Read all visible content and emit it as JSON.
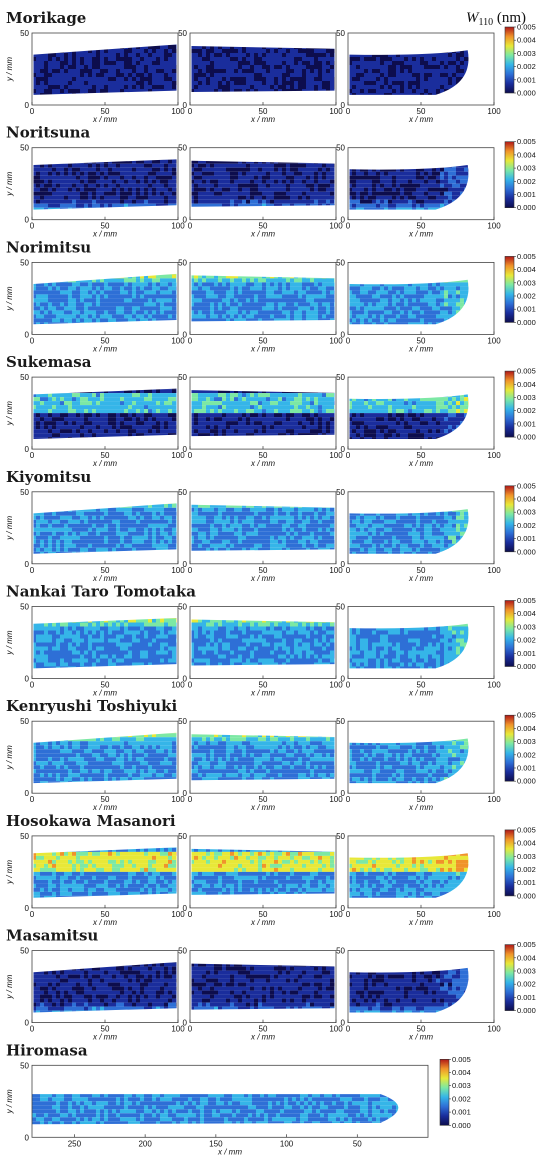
{
  "figure": {
    "quantity": "W",
    "quantity_sub": "110",
    "quantity_unit": " (nm)",
    "colorbar_ticks": [
      "0.000",
      "0.001",
      "0.002",
      "0.003",
      "0.004",
      "0.005"
    ]
  },
  "colors": {
    "colormap": [
      "#0d0d4d",
      "#1a2d9c",
      "#2e6fd6",
      "#35b5e8",
      "#7ce8a4",
      "#e8e838",
      "#f0932a",
      "#b01818"
    ],
    "text": "#111111",
    "frame": "#444444"
  },
  "chart_data": [
    {
      "type": "heatmap",
      "title": "Morikage",
      "panels": 3,
      "xlabel": "x / mm",
      "ylabel": "y / mm",
      "xlim": [
        0,
        100
      ],
      "ylim": [
        0,
        50
      ],
      "x_ticks": [
        "0",
        "50",
        "100"
      ],
      "y_ticks": [
        "0",
        "50"
      ],
      "colorbar": {
        "min": 0,
        "max": 0.005,
        "unit": "nm"
      },
      "level": "low",
      "edge_pattern": "none"
    },
    {
      "type": "heatmap",
      "title": "Noritsuna",
      "panels": 3,
      "xlabel": "x / mm",
      "ylabel": "y / mm",
      "xlim": [
        0,
        100
      ],
      "ylim": [
        0,
        50
      ],
      "x_ticks": [
        "0",
        "50",
        "100"
      ],
      "y_ticks": [
        "0",
        "50"
      ],
      "colorbar": {
        "min": 0,
        "max": 0.005,
        "unit": "nm"
      },
      "level": "low",
      "edge_pattern": "lower edge"
    },
    {
      "type": "heatmap",
      "title": "Norimitsu",
      "panels": 3,
      "xlabel": "x / mm",
      "ylabel": "y / mm",
      "xlim": [
        0,
        100
      ],
      "ylim": [
        0,
        50
      ],
      "x_ticks": [
        "0",
        "50",
        "100"
      ],
      "y_ticks": [
        "0",
        "50"
      ],
      "colorbar": {
        "min": 0,
        "max": 0.005,
        "unit": "nm"
      },
      "level": "medium",
      "edge_pattern": "upper edge"
    },
    {
      "type": "heatmap",
      "title": "Sukemasa",
      "panels": 3,
      "xlabel": "x / mm",
      "ylabel": "y / mm",
      "xlim": [
        0,
        100
      ],
      "ylim": [
        0,
        50
      ],
      "x_ticks": [
        "0",
        "50",
        "100"
      ],
      "y_ticks": [
        "0",
        "50"
      ],
      "colorbar": {
        "min": 0,
        "max": 0.005,
        "unit": "nm"
      },
      "level": "low",
      "edge_pattern": "upper band"
    },
    {
      "type": "heatmap",
      "title": "Kiyomitsu",
      "panels": 3,
      "xlabel": "x / mm",
      "ylabel": "y / mm",
      "xlim": [
        0,
        100
      ],
      "ylim": [
        0,
        50
      ],
      "x_ticks": [
        "0",
        "50",
        "100"
      ],
      "y_ticks": [
        "0",
        "50"
      ],
      "colorbar": {
        "min": 0,
        "max": 0.005,
        "unit": "nm"
      },
      "level": "medium",
      "edge_pattern": "thin upper edge"
    },
    {
      "type": "heatmap",
      "title": "Nankai Taro Tomotaka",
      "panels": 3,
      "xlabel": "x / mm",
      "ylabel": "y / mm",
      "xlim": [
        0,
        100
      ],
      "ylim": [
        0,
        50
      ],
      "x_ticks": [
        "0",
        "50",
        "100"
      ],
      "y_ticks": [
        "0",
        "50"
      ],
      "colorbar": {
        "min": 0,
        "max": 0.005,
        "unit": "nm"
      },
      "level": "medium",
      "edge_pattern": "upper edge"
    },
    {
      "type": "heatmap",
      "title": "Kenryushi Toshiyuki",
      "panels": 3,
      "xlabel": "x / mm",
      "ylabel": "y / mm",
      "xlim": [
        0,
        100
      ],
      "ylim": [
        0,
        50
      ],
      "x_ticks": [
        "0",
        "50",
        "100"
      ],
      "y_ticks": [
        "0",
        "50"
      ],
      "colorbar": {
        "min": 0,
        "max": 0.005,
        "unit": "nm"
      },
      "level": "medium",
      "edge_pattern": "upper edge"
    },
    {
      "type": "heatmap",
      "title": "Hosokawa Masanori",
      "panels": 3,
      "xlabel": "x / mm",
      "ylabel": "y / mm",
      "xlim": [
        0,
        100
      ],
      "ylim": [
        0,
        50
      ],
      "x_ticks": [
        "0",
        "50",
        "100"
      ],
      "y_ticks": [
        "0",
        "50"
      ],
      "colorbar": {
        "min": 0,
        "max": 0.005,
        "unit": "nm"
      },
      "level": "medium",
      "edge_pattern": "upper band"
    },
    {
      "type": "heatmap",
      "title": "Masamitsu",
      "panels": 3,
      "xlabel": "x / mm",
      "ylabel": "y / mm",
      "xlim": [
        0,
        100
      ],
      "ylim": [
        0,
        50
      ],
      "x_ticks": [
        "0",
        "50",
        "100"
      ],
      "y_ticks": [
        "0",
        "50"
      ],
      "colorbar": {
        "min": 0,
        "max": 0.005,
        "unit": "nm"
      },
      "level": "low",
      "edge_pattern": "lower edge"
    },
    {
      "type": "heatmap",
      "title": "Hiromasa",
      "panels": 1,
      "xlabel": "x / mm",
      "ylabel": "y / mm",
      "xlim": [
        280,
        0
      ],
      "ylim": [
        0,
        50
      ],
      "x_ticks": [
        "250",
        "200",
        "150",
        "100",
        "50"
      ],
      "y_ticks": [
        "0",
        "50"
      ],
      "colorbar": {
        "min": 0,
        "max": 0.005,
        "unit": "nm"
      },
      "level": "medium",
      "edge_pattern": "none"
    }
  ]
}
